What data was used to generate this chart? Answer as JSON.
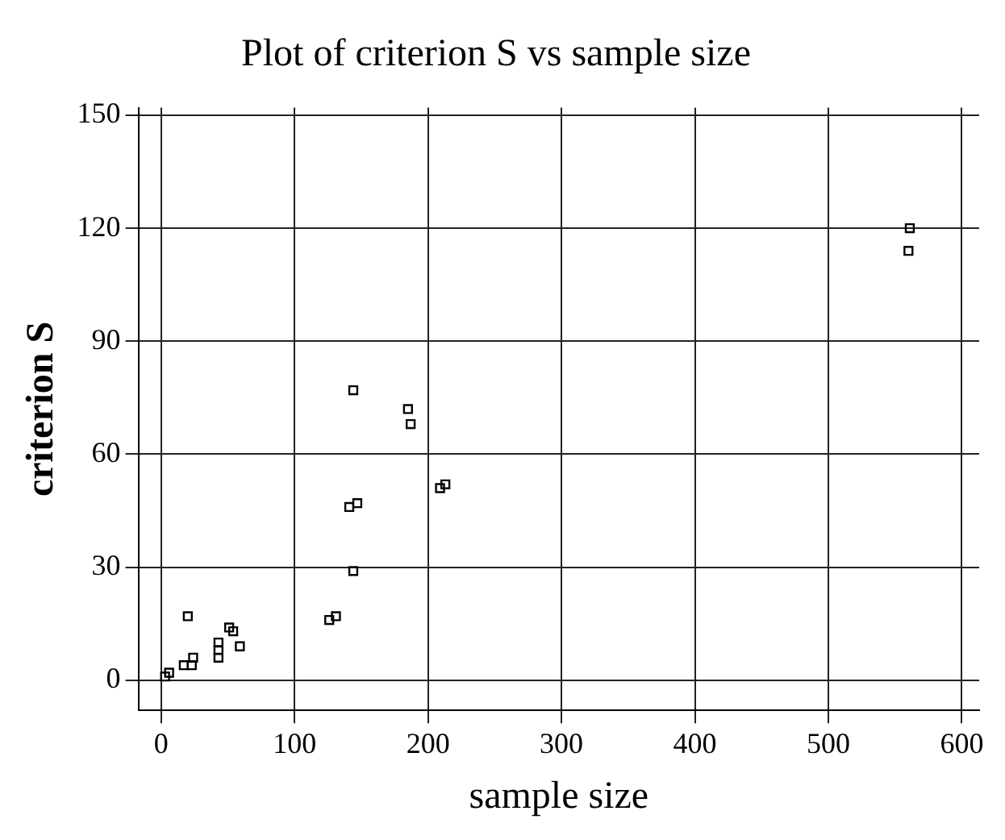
{
  "chart_data": {
    "type": "scatter",
    "title": "Plot of criterion S vs sample size",
    "xlabel": "sample size",
    "ylabel": "criterion S",
    "x": [
      3,
      6,
      17,
      20,
      23,
      24,
      43,
      43,
      43,
      51,
      54,
      59,
      126,
      131,
      141,
      144,
      147,
      144,
      185,
      187,
      209,
      213,
      560,
      561
    ],
    "values": [
      1,
      2,
      4,
      17,
      4,
      6,
      10,
      8,
      6,
      14,
      13,
      9,
      16,
      17,
      46,
      29,
      47,
      77,
      72,
      68,
      51,
      52,
      114,
      120
    ],
    "color": "#000000",
    "marker": "square",
    "xlim": [
      -17,
      613
    ],
    "xticks": [
      0,
      100,
      200,
      300,
      400,
      500,
      600
    ],
    "ylim": [
      -8,
      152
    ],
    "yticks": [
      0,
      30,
      60,
      90,
      120,
      150
    ],
    "grid": true,
    "legend": false
  }
}
